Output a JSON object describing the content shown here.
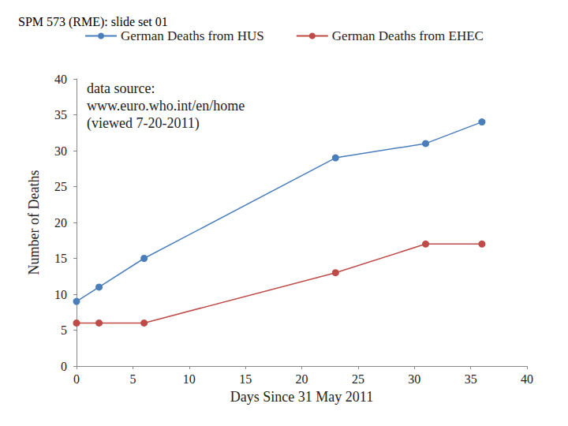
{
  "chart_data": {
    "type": "line",
    "title": "SPM 573 (RME): slide set 01",
    "x_label": "Days Since 31 May 2011",
    "y_label": "Number of Deaths",
    "annotations": [
      "data source:",
      "www.euro.who.int/en/home",
      "(viewed 7-20-2011)"
    ],
    "x": [
      0,
      2,
      6,
      23,
      31,
      36
    ],
    "series": [
      {
        "name": "German Deaths from HUS",
        "color": "#4a7ebb",
        "marker": "circle",
        "values": [
          9,
          11,
          15,
          29,
          31,
          34
        ]
      },
      {
        "name": "German Deaths from EHEC",
        "color": "#be4b48",
        "marker": "circle",
        "values": [
          6,
          6,
          6,
          13,
          17,
          17
        ]
      }
    ],
    "xlim": [
      0,
      40
    ],
    "xticks": [
      0,
      5,
      10,
      15,
      20,
      25,
      30,
      35,
      40
    ],
    "ylim": [
      0,
      40
    ],
    "yticks": [
      0,
      5,
      10,
      15,
      20,
      25,
      30,
      35,
      40
    ],
    "grid": false,
    "legend": "top"
  }
}
